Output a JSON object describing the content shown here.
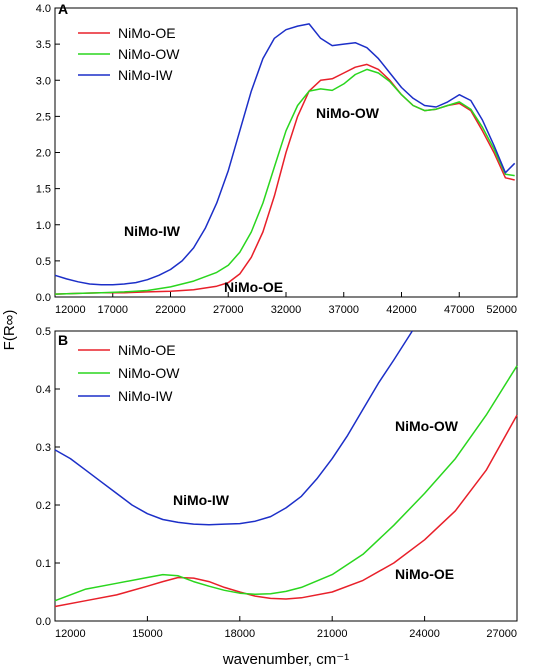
{
  "chart_data": [
    {
      "panel": "A",
      "type": "line",
      "xlabel": "",
      "ylabel": "F(R∞)",
      "xlim": [
        12000,
        52000
      ],
      "ylim": [
        0,
        4.0
      ],
      "xticks": [
        12000,
        17000,
        22000,
        27000,
        32000,
        37000,
        42000,
        47000,
        52000
      ],
      "yticks": [
        0.0,
        0.5,
        1.0,
        1.5,
        2.0,
        2.5,
        3.0,
        3.5,
        4.0
      ],
      "xtick_labels": [
        "12000",
        "17000",
        "22000",
        "27000",
        "32000",
        "37000",
        "42000",
        "47000",
        "52000"
      ],
      "ytick_labels": [
        "0.0",
        "0.5",
        "1.0",
        "1.5",
        "2.0",
        "2.5",
        "3.0",
        "3.5",
        "4.0"
      ],
      "legend_position": "top-left",
      "series": [
        {
          "name": "NiMo-OE",
          "color": "#e8202a",
          "x": [
            12000,
            14000,
            16000,
            18000,
            20000,
            22000,
            24000,
            26000,
            27000,
            28000,
            29000,
            30000,
            31000,
            32000,
            33000,
            34000,
            35000,
            36000,
            37000,
            38000,
            39000,
            40000,
            41000,
            42000,
            43000,
            44000,
            45000,
            46000,
            47000,
            48000,
            49000,
            50000,
            51000,
            51800
          ],
          "y": [
            0.04,
            0.05,
            0.06,
            0.06,
            0.07,
            0.08,
            0.1,
            0.15,
            0.2,
            0.32,
            0.55,
            0.9,
            1.4,
            2.0,
            2.5,
            2.85,
            3.0,
            3.02,
            3.1,
            3.18,
            3.22,
            3.15,
            3.0,
            2.8,
            2.65,
            2.58,
            2.6,
            2.65,
            2.68,
            2.58,
            2.3,
            2.0,
            1.65,
            1.62
          ]
        },
        {
          "name": "NiMo-OW",
          "color": "#2ad61e",
          "x": [
            12000,
            14000,
            16000,
            18000,
            20000,
            22000,
            24000,
            26000,
            27000,
            28000,
            29000,
            30000,
            31000,
            32000,
            33000,
            34000,
            35000,
            36000,
            37000,
            38000,
            39000,
            40000,
            41000,
            42000,
            43000,
            44000,
            45000,
            46000,
            47000,
            48000,
            49000,
            50000,
            51000,
            51800
          ],
          "y": [
            0.04,
            0.05,
            0.06,
            0.07,
            0.09,
            0.14,
            0.22,
            0.34,
            0.44,
            0.62,
            0.9,
            1.3,
            1.8,
            2.3,
            2.65,
            2.85,
            2.88,
            2.86,
            2.95,
            3.08,
            3.15,
            3.1,
            2.98,
            2.8,
            2.65,
            2.58,
            2.6,
            2.65,
            2.7,
            2.6,
            2.35,
            2.05,
            1.7,
            1.68
          ]
        },
        {
          "name": "NiMo-IW",
          "color": "#1c2fc8",
          "x": [
            12000,
            13000,
            14000,
            15000,
            16000,
            17000,
            18000,
            19000,
            20000,
            21000,
            22000,
            23000,
            24000,
            25000,
            26000,
            27000,
            28000,
            29000,
            30000,
            31000,
            32000,
            33000,
            34000,
            35000,
            36000,
            37000,
            38000,
            39000,
            40000,
            41000,
            42000,
            43000,
            44000,
            45000,
            46000,
            47000,
            48000,
            49000,
            50000,
            51000,
            51800
          ],
          "y": [
            0.3,
            0.25,
            0.21,
            0.18,
            0.17,
            0.17,
            0.18,
            0.2,
            0.24,
            0.3,
            0.38,
            0.5,
            0.68,
            0.95,
            1.3,
            1.75,
            2.3,
            2.85,
            3.3,
            3.58,
            3.7,
            3.75,
            3.78,
            3.58,
            3.48,
            3.5,
            3.52,
            3.45,
            3.3,
            3.1,
            2.9,
            2.75,
            2.65,
            2.63,
            2.7,
            2.8,
            2.72,
            2.45,
            2.1,
            1.72,
            1.85
          ]
        }
      ],
      "annotations": [
        "NiMo-OW",
        "NiMo-IW",
        "NiMo-OE"
      ]
    },
    {
      "panel": "B",
      "type": "line",
      "xlabel": "wavenumber, cm⁻¹",
      "ylabel": "F(R∞)",
      "xlim": [
        12000,
        27000
      ],
      "ylim": [
        0,
        0.5
      ],
      "xticks": [
        12000,
        15000,
        18000,
        21000,
        24000,
        27000
      ],
      "yticks": [
        0.0,
        0.1,
        0.2,
        0.3,
        0.4,
        0.5
      ],
      "xtick_labels": [
        "12000",
        "15000",
        "18000",
        "21000",
        "24000",
        "27000"
      ],
      "ytick_labels": [
        "0.0",
        "0.1",
        "0.2",
        "0.3",
        "0.4",
        "0.5"
      ],
      "legend_position": "top-left",
      "series": [
        {
          "name": "NiMo-OE",
          "color": "#e8202a",
          "x": [
            12000,
            13000,
            14000,
            15000,
            15500,
            16000,
            16500,
            17000,
            17500,
            18000,
            18500,
            19000,
            19500,
            20000,
            21000,
            22000,
            23000,
            24000,
            25000,
            26000,
            27000
          ],
          "y": [
            0.025,
            0.035,
            0.045,
            0.06,
            0.068,
            0.075,
            0.074,
            0.068,
            0.058,
            0.05,
            0.043,
            0.039,
            0.038,
            0.04,
            0.05,
            0.07,
            0.1,
            0.14,
            0.19,
            0.26,
            0.355
          ]
        },
        {
          "name": "NiMo-OW",
          "color": "#2ad61e",
          "x": [
            12000,
            13000,
            14000,
            15000,
            15500,
            16000,
            16500,
            17000,
            17500,
            18000,
            18500,
            19000,
            19500,
            20000,
            21000,
            22000,
            23000,
            24000,
            25000,
            26000,
            27000
          ],
          "y": [
            0.035,
            0.055,
            0.065,
            0.075,
            0.08,
            0.078,
            0.068,
            0.06,
            0.053,
            0.048,
            0.046,
            0.047,
            0.051,
            0.058,
            0.08,
            0.115,
            0.165,
            0.22,
            0.28,
            0.355,
            0.44
          ]
        },
        {
          "name": "NiMo-IW",
          "color": "#1c2fc8",
          "x": [
            12000,
            12500,
            13000,
            13500,
            14000,
            14500,
            15000,
            15500,
            16000,
            16500,
            17000,
            17500,
            18000,
            18500,
            19000,
            19500,
            20000,
            20500,
            21000,
            21500,
            22000,
            22500,
            23000,
            23600
          ],
          "y": [
            0.295,
            0.28,
            0.26,
            0.24,
            0.22,
            0.2,
            0.185,
            0.175,
            0.17,
            0.167,
            0.166,
            0.167,
            0.168,
            0.172,
            0.18,
            0.195,
            0.215,
            0.245,
            0.28,
            0.32,
            0.365,
            0.41,
            0.45,
            0.5
          ]
        }
      ],
      "annotations": [
        "NiMo-IW",
        "NiMo-OW",
        "NiMo-OE"
      ]
    }
  ]
}
